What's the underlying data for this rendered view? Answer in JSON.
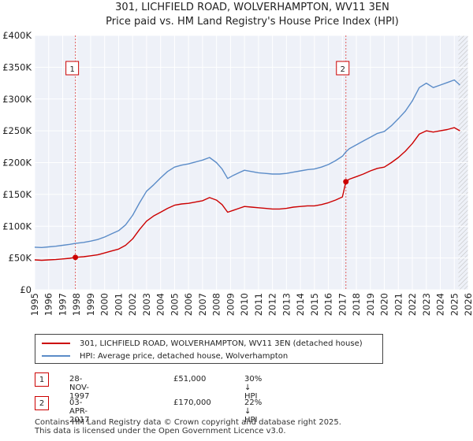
{
  "chart_data": {
    "type": "line",
    "title": "301, LICHFIELD ROAD, WOLVERHAMPTON, WV11 3EN",
    "subtitle": "Price paid vs. HM Land Registry's House Price Index (HPI)",
    "xlim": [
      1995,
      2026
    ],
    "ylim": [
      0,
      400000
    ],
    "x_ticks": [
      "1995",
      "1996",
      "1997",
      "1998",
      "1999",
      "2000",
      "2001",
      "2002",
      "2003",
      "2004",
      "2005",
      "2006",
      "2007",
      "2008",
      "2009",
      "2010",
      "2011",
      "2012",
      "2013",
      "2014",
      "2015",
      "2016",
      "2017",
      "2018",
      "2019",
      "2020",
      "2021",
      "2022",
      "2023",
      "2024",
      "2025",
      "2026"
    ],
    "y_ticks": [
      {
        "value": 0,
        "label": "£0"
      },
      {
        "value": 50000,
        "label": "£50K"
      },
      {
        "value": 100000,
        "label": "£100K"
      },
      {
        "value": 150000,
        "label": "£150K"
      },
      {
        "value": 200000,
        "label": "£200K"
      },
      {
        "value": 250000,
        "label": "£250K"
      },
      {
        "value": 300000,
        "label": "£300K"
      },
      {
        "value": 350000,
        "label": "£350K"
      },
      {
        "value": 400000,
        "label": "£400K"
      }
    ],
    "grid": true,
    "hatched_from": 2025.3,
    "series": [
      {
        "name": "301, LICHFIELD ROAD, WOLVERHAMPTON, WV11 3EN (detached house)",
        "color": "#cc0000",
        "x": [
          1995.0,
          1995.5,
          1996.0,
          1996.5,
          1997.0,
          1997.5,
          1997.91,
          1998.5,
          1999.0,
          1999.5,
          2000.0,
          2000.5,
          2001.0,
          2001.5,
          2002.0,
          2002.5,
          2003.0,
          2003.5,
          2004.0,
          2004.5,
          2005.0,
          2005.5,
          2006.0,
          2006.5,
          2007.0,
          2007.5,
          2008.0,
          2008.4,
          2008.8,
          2009.2,
          2009.6,
          2010.0,
          2010.5,
          2011.0,
          2011.5,
          2012.0,
          2012.5,
          2013.0,
          2013.5,
          2014.0,
          2014.5,
          2015.0,
          2015.5,
          2016.0,
          2016.5,
          2017.0,
          2017.25,
          2017.5,
          2018.0,
          2018.5,
          2019.0,
          2019.5,
          2020.0,
          2020.5,
          2021.0,
          2021.5,
          2022.0,
          2022.5,
          2023.0,
          2023.5,
          2024.0,
          2024.5,
          2025.0,
          2025.4
        ],
        "values": [
          47000,
          46500,
          47000,
          47500,
          48500,
          49500,
          51000,
          52000,
          53500,
          55000,
          58000,
          61000,
          64000,
          70000,
          80000,
          95000,
          108000,
          116000,
          122000,
          128000,
          133000,
          135000,
          136000,
          138000,
          140000,
          145000,
          141000,
          134000,
          122000,
          125000,
          128000,
          131000,
          130000,
          129000,
          128000,
          127000,
          127000,
          128000,
          130000,
          131000,
          132000,
          132000,
          134000,
          137000,
          141000,
          146000,
          170000,
          174000,
          178000,
          182000,
          187000,
          191000,
          193000,
          200000,
          208000,
          218000,
          230000,
          245000,
          250000,
          248000,
          250000,
          252000,
          255000,
          250000
        ]
      },
      {
        "name": "HPI: Average price, detached house, Wolverhampton",
        "color": "#5b8cc8",
        "x": [
          1995.0,
          1995.5,
          1996.0,
          1996.5,
          1997.0,
          1997.5,
          1997.91,
          1998.5,
          1999.0,
          1999.5,
          2000.0,
          2000.5,
          2001.0,
          2001.5,
          2002.0,
          2002.5,
          2003.0,
          2003.5,
          2004.0,
          2004.5,
          2005.0,
          2005.5,
          2006.0,
          2006.5,
          2007.0,
          2007.5,
          2008.0,
          2008.4,
          2008.8,
          2009.2,
          2009.6,
          2010.0,
          2010.5,
          2011.0,
          2011.5,
          2012.0,
          2012.5,
          2013.0,
          2013.5,
          2014.0,
          2014.5,
          2015.0,
          2015.5,
          2016.0,
          2016.5,
          2017.0,
          2017.25,
          2017.5,
          2018.0,
          2018.5,
          2019.0,
          2019.5,
          2020.0,
          2020.5,
          2021.0,
          2021.5,
          2022.0,
          2022.5,
          2023.0,
          2023.5,
          2024.0,
          2024.5,
          2025.0,
          2025.4
        ],
        "values": [
          67000,
          66500,
          67500,
          68500,
          70000,
          71500,
          73000,
          74500,
          76500,
          79000,
          83000,
          88000,
          93000,
          102000,
          117000,
          137000,
          155000,
          165000,
          176000,
          186000,
          193000,
          196000,
          198000,
          201000,
          204000,
          208000,
          200000,
          190000,
          175000,
          180000,
          184000,
          188000,
          186000,
          184000,
          183000,
          182000,
          182000,
          183000,
          185000,
          187000,
          189000,
          190000,
          193000,
          197000,
          203000,
          210000,
          217000,
          222000,
          228000,
          234000,
          240000,
          246000,
          249000,
          258000,
          269000,
          281000,
          297000,
          318000,
          325000,
          318000,
          322000,
          326000,
          330000,
          322000
        ]
      }
    ],
    "transactions": [
      {
        "label": "1",
        "x": 1997.91,
        "price": 51000,
        "date": "28-NOV-1997",
        "price_text": "£51,000",
        "hpi_text": "30% ↓ HPI"
      },
      {
        "label": "2",
        "x": 2017.25,
        "price": 170000,
        "date": "03-APR-2017",
        "price_text": "£170,000",
        "hpi_text": "22% ↓ HPI"
      }
    ]
  },
  "legend": {
    "property": "301, LICHFIELD ROAD, WOLVERHAMPTON, WV11 3EN (detached house)",
    "hpi": "HPI: Average price, detached house, Wolverhampton",
    "property_color": "#cc0000",
    "hpi_color": "#5b8cc8"
  },
  "footer": {
    "line1": "Contains HM Land Registry data © Crown copyright and database right 2025.",
    "line2": "This data is licensed under the Open Government Licence v3.0."
  }
}
